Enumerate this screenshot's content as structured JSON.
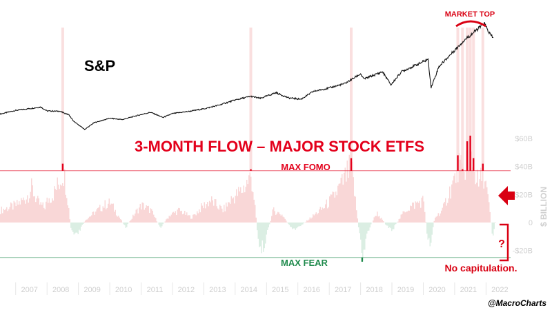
{
  "chart_data": [
    {
      "type": "line",
      "series_label": "S&P",
      "annotation": "MARKET TOP",
      "x_range": [
        2006.5,
        2022.3
      ],
      "points": [
        [
          2006.5,
          1280
        ],
        [
          2007.0,
          1420
        ],
        [
          2007.5,
          1500
        ],
        [
          2007.8,
          1550
        ],
        [
          2008.0,
          1400
        ],
        [
          2008.4,
          1390
        ],
        [
          2008.7,
          1250
        ],
        [
          2008.85,
          1000
        ],
        [
          2009.15,
          740
        ],
        [
          2009.2,
          690
        ],
        [
          2009.5,
          950
        ],
        [
          2010.0,
          1120
        ],
        [
          2010.4,
          1070
        ],
        [
          2010.8,
          1200
        ],
        [
          2011.3,
          1350
        ],
        [
          2011.7,
          1150
        ],
        [
          2012.0,
          1300
        ],
        [
          2012.5,
          1380
        ],
        [
          2013.0,
          1480
        ],
        [
          2013.5,
          1630
        ],
        [
          2014.0,
          1820
        ],
        [
          2014.5,
          1960
        ],
        [
          2014.8,
          1880
        ],
        [
          2015.3,
          2100
        ],
        [
          2015.7,
          1900
        ],
        [
          2016.1,
          1850
        ],
        [
          2016.5,
          2150
        ],
        [
          2017.0,
          2280
        ],
        [
          2017.5,
          2450
        ],
        [
          2018.0,
          2820
        ],
        [
          2018.1,
          2620
        ],
        [
          2018.7,
          2900
        ],
        [
          2018.97,
          2400
        ],
        [
          2019.3,
          2900
        ],
        [
          2019.9,
          3230
        ],
        [
          2020.15,
          3380
        ],
        [
          2020.25,
          2300
        ],
        [
          2020.5,
          3100
        ],
        [
          2020.9,
          3600
        ],
        [
          2021.3,
          4100
        ],
        [
          2021.6,
          4400
        ],
        [
          2021.95,
          4750
        ],
        [
          2022.05,
          4500
        ],
        [
          2022.15,
          4300
        ],
        [
          2022.25,
          4150
        ]
      ]
    },
    {
      "type": "area",
      "title": "3-MONTH FLOW – MAJOR STOCK ETFS",
      "ylabel": "$ BILLION",
      "ylim": [
        -30,
        65
      ],
      "ytick_labels": [
        "-$20B",
        "0",
        "$20B",
        "$40B",
        "$60B"
      ],
      "yticks": [
        -20,
        0,
        20,
        40,
        60
      ],
      "xtick_labels": [
        "2007",
        "2008",
        "2009",
        "2010",
        "2011",
        "2012",
        "2013",
        "2014",
        "2015",
        "2016",
        "2017",
        "2018",
        "2019",
        "2020",
        "2021",
        "2022"
      ],
      "xticks": [
        2007,
        2008,
        2009,
        2010,
        2011,
        2012,
        2013,
        2014,
        2015,
        2016,
        2017,
        2018,
        2019,
        2020,
        2021,
        2022
      ],
      "max_fomo": 37,
      "max_fear": -25,
      "max_fomo_label": "MAX FOMO",
      "max_fear_label": "MAX FEAR",
      "callout": "No capitulation.",
      "question": "?",
      "points": [
        [
          2006.5,
          10
        ],
        [
          2007.0,
          14
        ],
        [
          2007.3,
          20
        ],
        [
          2007.5,
          28
        ],
        [
          2007.7,
          16
        ],
        [
          2007.9,
          12
        ],
        [
          2008.0,
          18
        ],
        [
          2008.2,
          24
        ],
        [
          2008.4,
          34
        ],
        [
          2008.5,
          42
        ],
        [
          2008.6,
          30
        ],
        [
          2008.75,
          -6
        ],
        [
          2008.9,
          -12
        ],
        [
          2009.0,
          -8
        ],
        [
          2009.2,
          2
        ],
        [
          2009.5,
          8
        ],
        [
          2009.8,
          14
        ],
        [
          2010.0,
          16
        ],
        [
          2010.3,
          4
        ],
        [
          2010.5,
          -4
        ],
        [
          2010.8,
          8
        ],
        [
          2011.0,
          14
        ],
        [
          2011.3,
          10
        ],
        [
          2011.6,
          -4
        ],
        [
          2011.9,
          6
        ],
        [
          2012.2,
          10
        ],
        [
          2012.6,
          4
        ],
        [
          2012.9,
          12
        ],
        [
          2013.2,
          18
        ],
        [
          2013.6,
          10
        ],
        [
          2013.9,
          20
        ],
        [
          2014.2,
          26
        ],
        [
          2014.5,
          38
        ],
        [
          2014.6,
          18
        ],
        [
          2014.7,
          -10
        ],
        [
          2014.8,
          -24
        ],
        [
          2014.95,
          -14
        ],
        [
          2015.2,
          10
        ],
        [
          2015.5,
          6
        ],
        [
          2015.8,
          -6
        ],
        [
          2016.0,
          -4
        ],
        [
          2016.4,
          4
        ],
        [
          2016.8,
          12
        ],
        [
          2017.1,
          20
        ],
        [
          2017.4,
          32
        ],
        [
          2017.7,
          46
        ],
        [
          2017.8,
          22
        ],
        [
          2017.95,
          -10
        ],
        [
          2018.05,
          -28
        ],
        [
          2018.2,
          -8
        ],
        [
          2018.5,
          8
        ],
        [
          2018.8,
          -2
        ],
        [
          2019.0,
          -6
        ],
        [
          2019.4,
          10
        ],
        [
          2019.8,
          16
        ],
        [
          2020.0,
          18
        ],
        [
          2020.1,
          -8
        ],
        [
          2020.2,
          -18
        ],
        [
          2020.35,
          4
        ],
        [
          2020.6,
          10
        ],
        [
          2020.8,
          24
        ],
        [
          2021.0,
          36
        ],
        [
          2021.1,
          48
        ],
        [
          2021.25,
          38
        ],
        [
          2021.4,
          58
        ],
        [
          2021.5,
          62
        ],
        [
          2021.6,
          46
        ],
        [
          2021.75,
          30
        ],
        [
          2021.9,
          42
        ],
        [
          2022.0,
          28
        ],
        [
          2022.1,
          10
        ],
        [
          2022.2,
          -12
        ],
        [
          2022.3,
          4
        ]
      ]
    }
  ],
  "watermark": "@MacroCharts",
  "colors": {
    "line": "#111111",
    "positive_fill": "#f9d7d7",
    "negative_fill": "#dbeee3",
    "accent_red": "#e3001b",
    "accent_green": "#1f8a4c",
    "axis_text": "#cfcfcf",
    "callout_red": "#d90012"
  }
}
